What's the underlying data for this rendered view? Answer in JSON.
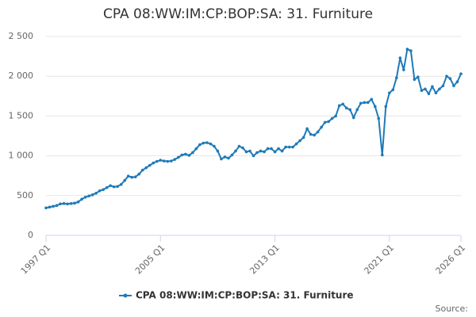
{
  "chart_data": {
    "type": "line",
    "title": "CPA 08:WW:IM:CP:BOP:SA: 31. Furniture",
    "source": "Source:",
    "categories": [
      "1997 Q1",
      null,
      null,
      null,
      null,
      null,
      null,
      null,
      null,
      null,
      null,
      null,
      null,
      null,
      null,
      null,
      null,
      null,
      null,
      null,
      null,
      null,
      null,
      null,
      null,
      null,
      null,
      null,
      null,
      null,
      null,
      null,
      "2005 Q1",
      null,
      null,
      null,
      null,
      null,
      null,
      null,
      null,
      null,
      null,
      null,
      null,
      null,
      null,
      null,
      null,
      null,
      null,
      null,
      null,
      null,
      null,
      null,
      null,
      null,
      null,
      null,
      null,
      null,
      null,
      null,
      "2013 Q1",
      null,
      null,
      null,
      null,
      null,
      null,
      null,
      null,
      null,
      null,
      null,
      null,
      null,
      null,
      null,
      null,
      null,
      null,
      null,
      null,
      null,
      null,
      null,
      null,
      null,
      null,
      null,
      null,
      null,
      null,
      null,
      "2021 Q1",
      null,
      null,
      null,
      null,
      null,
      null,
      null,
      null,
      null,
      null,
      null,
      null,
      null,
      null,
      null,
      null,
      null,
      null,
      null,
      "2026 Q1"
    ],
    "series": [
      {
        "name": "CPA 08:WW:IM:CP:BOP:SA: 31. Furniture",
        "color": "#1f7ab8",
        "values": [
          345,
          355,
          365,
          375,
          395,
          400,
          395,
          400,
          405,
          420,
          455,
          480,
          495,
          510,
          530,
          560,
          575,
          600,
          625,
          610,
          615,
          640,
          690,
          745,
          730,
          735,
          770,
          820,
          850,
          880,
          910,
          930,
          945,
          935,
          930,
          935,
          955,
          980,
          1010,
          1020,
          1005,
          1040,
          1090,
          1140,
          1160,
          1165,
          1150,
          1120,
          1060,
          960,
          985,
          970,
          1010,
          1060,
          1120,
          1100,
          1050,
          1060,
          1000,
          1040,
          1060,
          1050,
          1090,
          1090,
          1050,
          1090,
          1060,
          1110,
          1110,
          1110,
          1150,
          1190,
          1230,
          1340,
          1270,
          1260,
          1300,
          1360,
          1420,
          1430,
          1470,
          1500,
          1630,
          1650,
          1600,
          1580,
          1480,
          1580,
          1660,
          1670,
          1670,
          1710,
          1620,
          1470,
          1010,
          1620,
          1790,
          1830,
          1980,
          2230,
          2080,
          2340,
          2320,
          1960,
          1990,
          1820,
          1840,
          1780,
          1870,
          1790,
          1840,
          1880,
          2000,
          1970,
          1880,
          1930,
          2030
        ]
      }
    ],
    "ylim": [
      0,
      2500
    ],
    "yticks": [
      0,
      500,
      {
        "value": 1000,
        "label": "1 000"
      },
      {
        "value": 1500,
        "label": "1 500"
      },
      {
        "value": 2000,
        "label": "2 000"
      },
      {
        "value": 2500,
        "label": "2 500"
      }
    ],
    "grid": true
  }
}
